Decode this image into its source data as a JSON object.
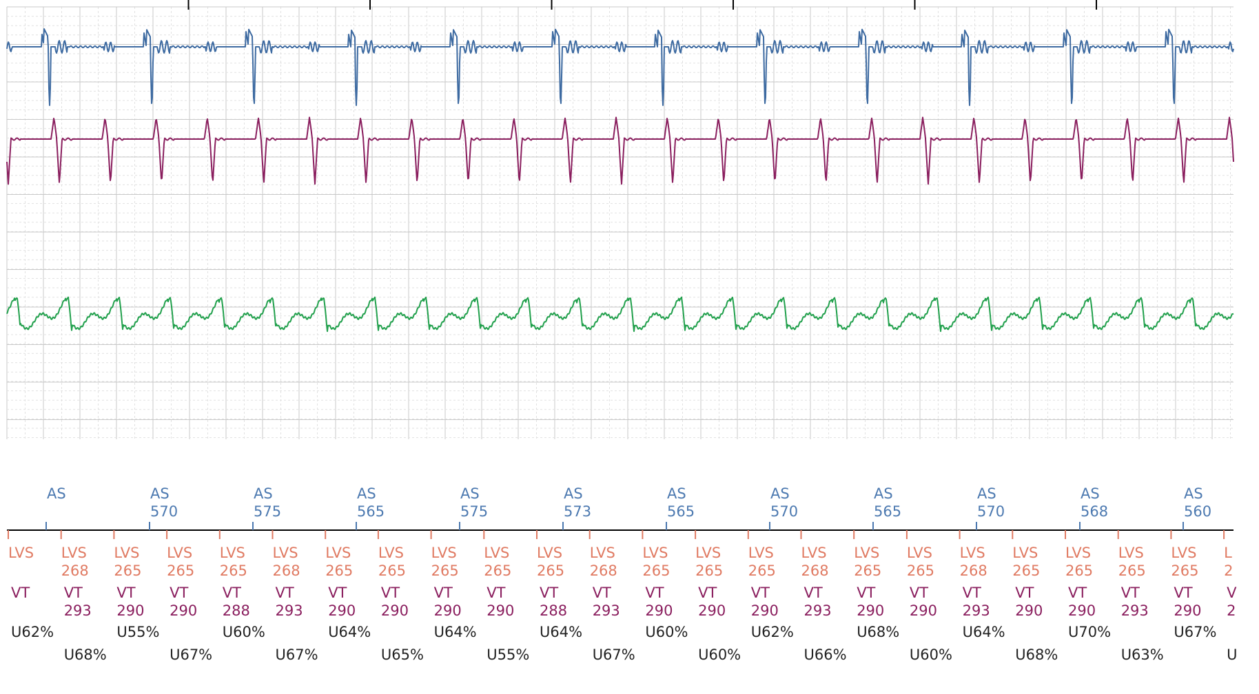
{
  "colors": {
    "channel_1": "#3d6aa1",
    "channel_2": "#8a1e5e",
    "channel_3": "#21a04c",
    "atrial_marker": "#4c79b0",
    "lvs_marker": "#e07a62",
    "vt_marker": "#8a1e5e",
    "percent_text": "#222222",
    "grid_minor": "#e1e1e1",
    "grid_major": "#c9c9c9"
  },
  "chart_data": {
    "type": "line",
    "title": "",
    "xlabel": "",
    "ylabel": "",
    "grid": true,
    "series": [
      {
        "channel": 1,
        "morphology": "narrow negative deflection",
        "beats": 12,
        "cycle_length_ms": 570
      },
      {
        "channel": 2,
        "morphology": "biphasic spike",
        "beats": 24,
        "cycle_length_ms": 285
      },
      {
        "channel": 3,
        "morphology": "sawtooth",
        "beats": 24,
        "cycle_length_ms": 285
      }
    ],
    "markers": {
      "atrial": [
        {
          "label": "AS",
          "value": ""
        },
        {
          "label": "AS",
          "value": "570"
        },
        {
          "label": "AS",
          "value": "575"
        },
        {
          "label": "AS",
          "value": "565"
        },
        {
          "label": "AS",
          "value": "575"
        },
        {
          "label": "AS",
          "value": "573"
        },
        {
          "label": "AS",
          "value": "565"
        },
        {
          "label": "AS",
          "value": "570"
        },
        {
          "label": "AS",
          "value": "565"
        },
        {
          "label": "AS",
          "value": "570"
        },
        {
          "label": "AS",
          "value": "568"
        },
        {
          "label": "AS",
          "value": "560"
        }
      ],
      "ventricular": [
        {
          "lvs": "LVS",
          "lvs_value": "",
          "vt": "VT",
          "vt_value": "",
          "percent": "U62%"
        },
        {
          "lvs": "LVS",
          "lvs_value": "268",
          "vt": "VT",
          "vt_value": "293",
          "percent": "U68%"
        },
        {
          "lvs": "LVS",
          "lvs_value": "265",
          "vt": "VT",
          "vt_value": "290",
          "percent": "U55%"
        },
        {
          "lvs": "LVS",
          "lvs_value": "265",
          "vt": "VT",
          "vt_value": "290",
          "percent": "U67%"
        },
        {
          "lvs": "LVS",
          "lvs_value": "265",
          "vt": "VT",
          "vt_value": "288",
          "percent": "U60%"
        },
        {
          "lvs": "LVS",
          "lvs_value": "268",
          "vt": "VT",
          "vt_value": "293",
          "percent": "U67%"
        },
        {
          "lvs": "LVS",
          "lvs_value": "265",
          "vt": "VT",
          "vt_value": "290",
          "percent": "U64%"
        },
        {
          "lvs": "LVS",
          "lvs_value": "265",
          "vt": "VT",
          "vt_value": "290",
          "percent": "U65%"
        },
        {
          "lvs": "LVS",
          "lvs_value": "265",
          "vt": "VT",
          "vt_value": "290",
          "percent": "U64%"
        },
        {
          "lvs": "LVS",
          "lvs_value": "265",
          "vt": "VT",
          "vt_value": "290",
          "percent": "U55%"
        },
        {
          "lvs": "LVS",
          "lvs_value": "265",
          "vt": "VT",
          "vt_value": "288",
          "percent": "U64%"
        },
        {
          "lvs": "LVS",
          "lvs_value": "268",
          "vt": "VT",
          "vt_value": "293",
          "percent": "U67%"
        },
        {
          "lvs": "LVS",
          "lvs_value": "265",
          "vt": "VT",
          "vt_value": "290",
          "percent": "U60%"
        },
        {
          "lvs": "LVS",
          "lvs_value": "265",
          "vt": "VT",
          "vt_value": "290",
          "percent": "U60%"
        },
        {
          "lvs": "LVS",
          "lvs_value": "265",
          "vt": "VT",
          "vt_value": "290",
          "percent": "U62%"
        },
        {
          "lvs": "LVS",
          "lvs_value": "268",
          "vt": "VT",
          "vt_value": "293",
          "percent": "U66%"
        },
        {
          "lvs": "LVS",
          "lvs_value": "265",
          "vt": "VT",
          "vt_value": "290",
          "percent": "U68%"
        },
        {
          "lvs": "LVS",
          "lvs_value": "265",
          "vt": "VT",
          "vt_value": "290",
          "percent": "U60%"
        },
        {
          "lvs": "LVS",
          "lvs_value": "268",
          "vt": "VT",
          "vt_value": "293",
          "percent": "U64%"
        },
        {
          "lvs": "LVS",
          "lvs_value": "265",
          "vt": "VT",
          "vt_value": "290",
          "percent": "U68%"
        },
        {
          "lvs": "LVS",
          "lvs_value": "265",
          "vt": "VT",
          "vt_value": "290",
          "percent": "U70%"
        },
        {
          "lvs": "LVS",
          "lvs_value": "265",
          "vt": "VT",
          "vt_value": "293",
          "percent": "U63%"
        },
        {
          "lvs": "LVS",
          "lvs_value": "265",
          "vt": "VT",
          "vt_value": "290",
          "percent": "U67%"
        },
        {
          "lvs": "L",
          "lvs_value": "2",
          "vt": "V",
          "vt_value": "2",
          "percent": "U"
        }
      ]
    }
  }
}
